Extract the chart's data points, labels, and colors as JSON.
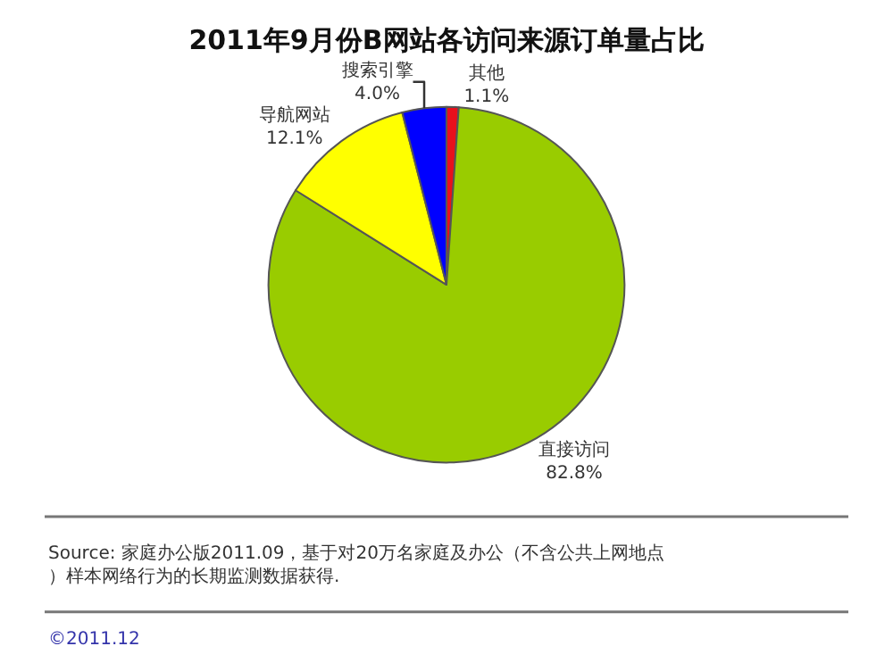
{
  "chart_data": {
    "type": "pie",
    "title": "2011年9月份B网站各访问来源订单量占比",
    "categories": [
      "其他",
      "直接访问",
      "导航网站",
      "搜索引擎"
    ],
    "values": [
      1.1,
      82.8,
      12.1,
      4.0
    ],
    "value_labels": [
      "1.1%",
      "82.8%",
      "12.1%",
      "4.0%"
    ],
    "colors": [
      "#e8101c",
      "#99cc00",
      "#ffff00",
      "#0000ff"
    ],
    "legend": false,
    "annotations": [
      "Source: 家庭办公版2011.09，基于对20万名家庭及办公（不含公共上网地点）样本网络行为的长期监测数据获得.",
      "©2011.12"
    ]
  }
}
